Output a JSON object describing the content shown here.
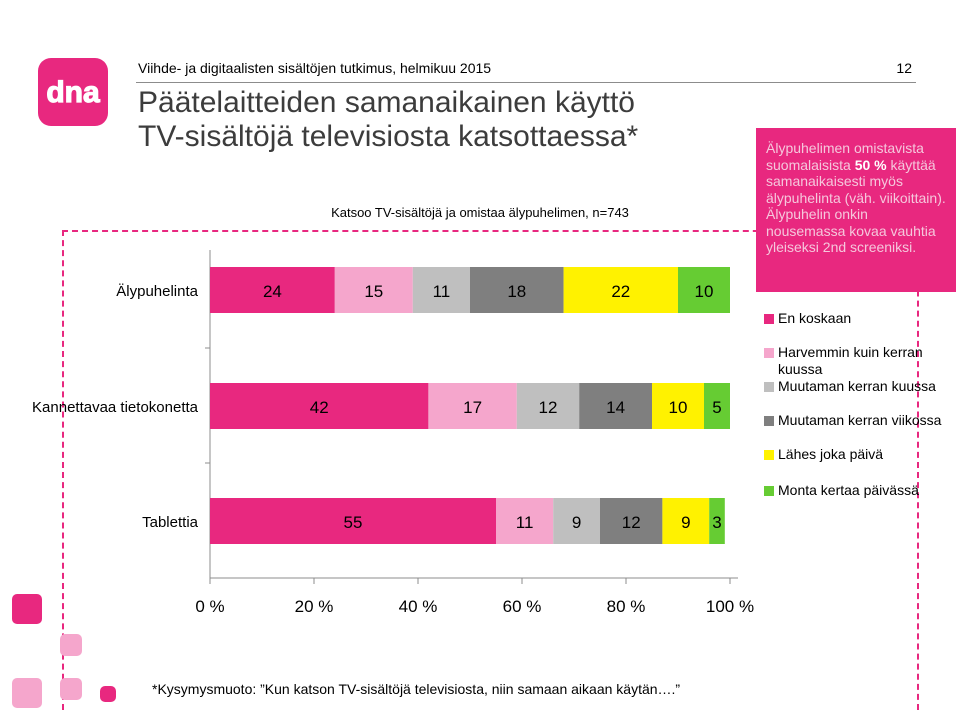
{
  "header": {
    "study": "Viihde- ja digitaalisten sisältöjen tutkimus, helmikuu 2015",
    "page_number": "12",
    "title_line1": "Päätelaitteiden samanaikainen käyttö",
    "title_line2": "TV-sisältöjä televisiosta katsottaessa*"
  },
  "logo": {
    "text": "dna",
    "color": "#e8287f"
  },
  "callout": {
    "before": "Älypuhelimen omistavista suomalaisista ",
    "highlight": "50 %",
    "after": " käyttää samanaikaisesti myös älypuhelinta (väh. viikoittain). Älypuhelin onkin nousemassa kovaa vauhtia yleiseksi 2nd screeniksi."
  },
  "footnote": "*Kysymysmuoto: ”Kun katson TV-sisältöjä televisiosta, niin samaan aikaan käytän….”",
  "chart_data": {
    "type": "bar",
    "orientation": "horizontal",
    "stacked": true,
    "subtitle": "Katsoo TV-sisältöjä ja omistaa älypuhelimen, n=743",
    "categories": [
      "Älypuhelinta",
      "Kannettavaa tietokonetta",
      "Tablettia"
    ],
    "series": [
      {
        "name": "En koskaan",
        "color": "#e8287f",
        "values": [
          24,
          42,
          55
        ]
      },
      {
        "name": "Harvemmin kuin kerran kuussa",
        "color": "#f5a6cc",
        "values": [
          15,
          17,
          11
        ]
      },
      {
        "name": "Muutaman kerran kuussa",
        "color": "#bfbfbf",
        "values": [
          11,
          12,
          9
        ]
      },
      {
        "name": "Muutaman kerran viikossa",
        "color": "#7f7f7f",
        "values": [
          18,
          14,
          12
        ]
      },
      {
        "name": "Lähes joka päivä",
        "color": "#fff200",
        "values": [
          22,
          10,
          9
        ]
      },
      {
        "name": "Monta kertaa päivässä",
        "color": "#66cc33",
        "values": [
          10,
          5,
          3
        ]
      }
    ],
    "xlim": [
      0,
      100
    ],
    "x_ticks": [
      "0 %",
      "20 %",
      "40 %",
      "60 %",
      "80 %",
      "100 %"
    ],
    "legend_position": "right",
    "grid": false
  }
}
